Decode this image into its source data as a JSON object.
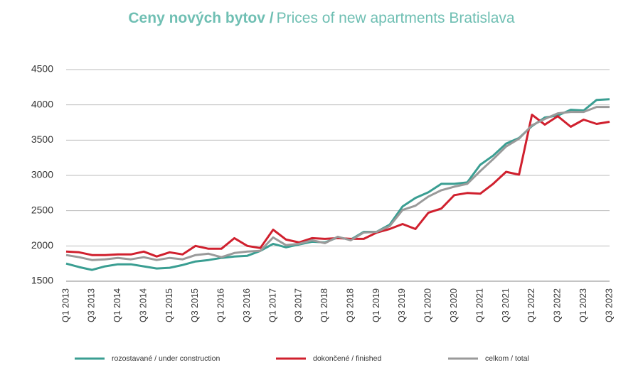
{
  "chart_data": {
    "type": "line",
    "title": "Ceny nových bytov  /",
    "subtitle": "Prices of new apartments Bratislava",
    "categories": [
      "Q1 2013",
      null,
      "Q3 2013",
      null,
      "Q1 2014",
      null,
      "Q3 2014",
      null,
      "Q1 2015",
      null,
      "Q3 2015",
      null,
      "Q1 2016",
      null,
      "Q3 2016",
      null,
      "Q1 2017",
      null,
      "Q3 2017",
      null,
      "Q1 2018",
      null,
      "Q3 2018",
      null,
      "Q1 2019",
      null,
      "Q3 2019",
      null,
      "Q1 2020",
      null,
      "Q3 2020",
      null,
      "Q1 2021",
      null,
      "Q3 2021",
      null,
      "Q1 2022",
      null,
      "Q3 2022",
      null,
      "Q1 2023",
      null,
      "Q3 2023"
    ],
    "series": [
      {
        "name": "rozostavané / under construction",
        "color": "#3a9e92",
        "values": [
          1750,
          1700,
          1660,
          1710,
          1740,
          1740,
          1710,
          1680,
          1690,
          1730,
          1780,
          1800,
          1830,
          1850,
          1860,
          1930,
          2030,
          1980,
          2020,
          2060,
          2050,
          2120,
          2090,
          2200,
          2200,
          2300,
          2560,
          2680,
          2760,
          2880,
          2880,
          2900,
          3150,
          3280,
          3450,
          3530,
          3700,
          3820,
          3850,
          3930,
          3920,
          4070,
          4080
        ]
      },
      {
        "name": "dokončené / finished",
        "color": "#d0202e",
        "values": [
          1920,
          1910,
          1870,
          1870,
          1880,
          1880,
          1920,
          1850,
          1910,
          1880,
          2000,
          1960,
          1960,
          2110,
          2000,
          1970,
          2230,
          2090,
          2050,
          2110,
          2100,
          2110,
          2100,
          2100,
          2190,
          2240,
          2310,
          2240,
          2470,
          2530,
          2720,
          2750,
          2740,
          2880,
          3050,
          3010,
          3860,
          3720,
          3840,
          3690,
          3790,
          3730,
          3760
        ]
      },
      {
        "name": "celkom / total",
        "color": "#9a9a9a",
        "values": [
          1870,
          1840,
          1800,
          1810,
          1830,
          1810,
          1840,
          1800,
          1830,
          1810,
          1870,
          1890,
          1840,
          1900,
          1920,
          1930,
          2120,
          2010,
          2030,
          2080,
          2040,
          2130,
          2080,
          2190,
          2200,
          2280,
          2510,
          2570,
          2700,
          2790,
          2840,
          2880,
          3060,
          3230,
          3410,
          3520,
          3710,
          3800,
          3880,
          3900,
          3900,
          3970,
          3970
        ]
      }
    ],
    "ylim": [
      1500,
      4500
    ],
    "yticks": [
      1500,
      2000,
      2500,
      3000,
      3500,
      4000,
      4500
    ],
    "grid": true
  }
}
